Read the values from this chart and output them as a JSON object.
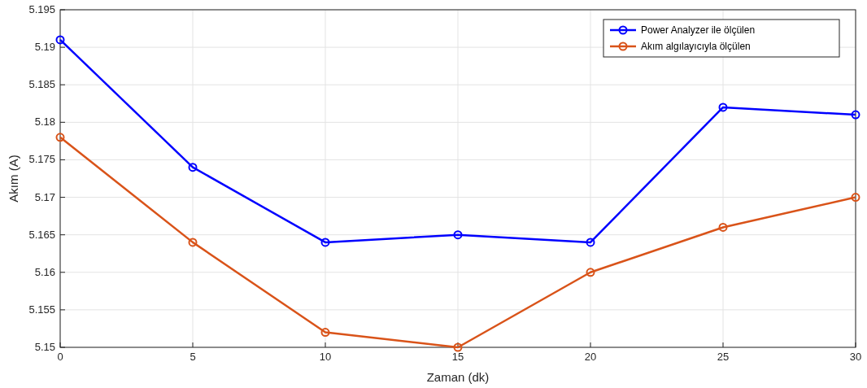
{
  "chart_data": {
    "type": "line",
    "xlabel": "Zaman (dk)",
    "ylabel": "Akım (A)",
    "x": [
      0,
      5,
      10,
      15,
      20,
      25,
      30
    ],
    "series": [
      {
        "name": "Power Analyzer ile ölçülen",
        "color": "#0000ff",
        "values": [
          5.191,
          5.174,
          5.164,
          5.165,
          5.164,
          5.182,
          5.181
        ]
      },
      {
        "name": "Akım algılayıcıyla ölçülen",
        "color": "#d95319",
        "values": [
          5.178,
          5.164,
          5.152,
          5.15,
          5.16,
          5.166,
          5.17
        ]
      }
    ],
    "xlim": [
      0,
      30
    ],
    "xticks": [
      0,
      5,
      10,
      15,
      20,
      25,
      30
    ],
    "ylim": [
      5.15,
      5.195
    ],
    "yticks": [
      5.15,
      5.155,
      5.16,
      5.165,
      5.17,
      5.175,
      5.18,
      5.185,
      5.19,
      5.195
    ],
    "grid": true,
    "legend": "top right",
    "marker": "circle",
    "line_style": "solid"
  }
}
